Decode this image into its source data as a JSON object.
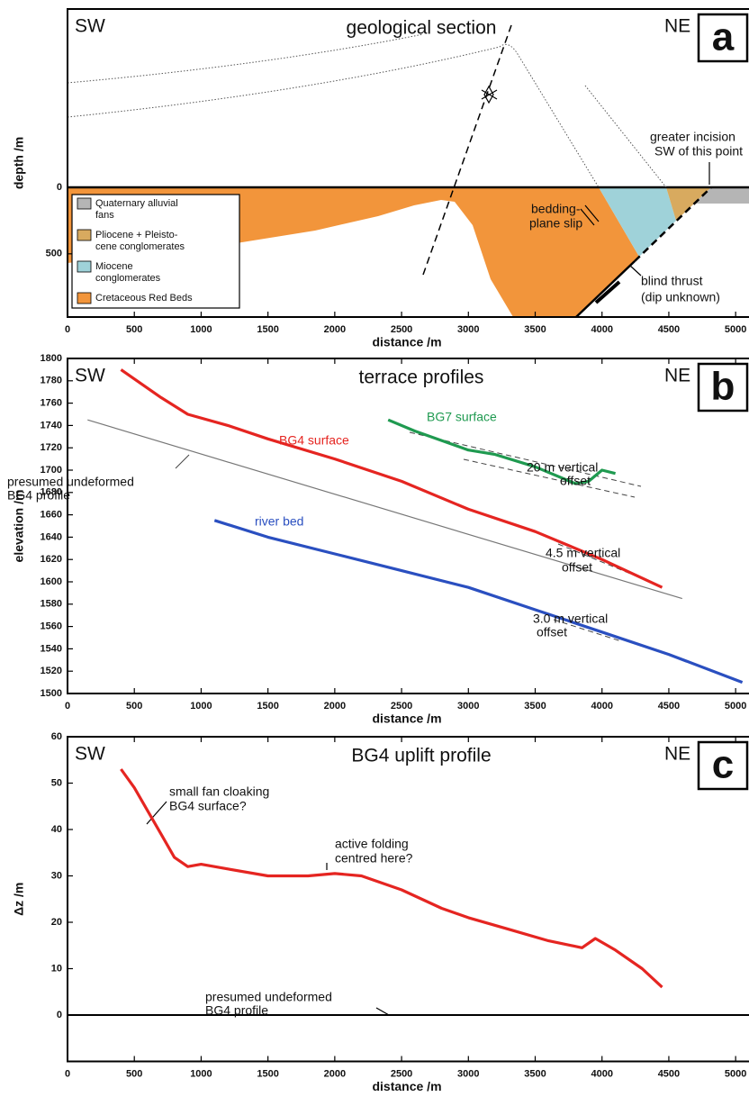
{
  "chart_data": [
    {
      "type": "section",
      "panel": "a",
      "title": "geological section",
      "left_label": "SW",
      "right_label": "NE",
      "xlabel": "distance /m",
      "ylabel": "depth /m",
      "xlim": [
        0,
        5100
      ],
      "xticks": [
        0,
        500,
        1000,
        1500,
        2000,
        2500,
        3000,
        3500,
        4000,
        4500,
        5000
      ],
      "ylim": [
        -1340,
        975
      ],
      "y_inverted": true,
      "yticks": [
        0,
        500
      ],
      "legend": [
        {
          "lines": [
            "Quaternary alluvial",
            "fans"
          ],
          "color": "#b5b5b5"
        },
        {
          "lines": [
            "Pliocene + Pleisto-",
            "cene conglomerates"
          ],
          "color": "#d8aa5f"
        },
        {
          "lines": [
            "Miocene",
            "conglomerates"
          ],
          "color": "#9fd2d9"
        },
        {
          "lines": [
            "Cretaceous Red Beds"
          ],
          "color": "#f2953b"
        }
      ],
      "annotations": [
        {
          "lines": [
            "greater incision",
            "SW of this point"
          ]
        },
        {
          "lines": [
            "bedding-",
            "plane slip"
          ]
        },
        {
          "lines": [
            "blind thrust",
            "(dip unknown)"
          ]
        }
      ]
    },
    {
      "type": "line",
      "panel": "b",
      "title": "terrace profiles",
      "left_label": "SW",
      "right_label": "NE",
      "xlabel": "distance /m",
      "ylabel": "elevation /m",
      "xlim": [
        0,
        5100
      ],
      "xticks": [
        0,
        500,
        1000,
        1500,
        2000,
        2500,
        3000,
        3500,
        4000,
        4500,
        5000
      ],
      "ylim": [
        1500,
        1800
      ],
      "yticks": [
        1500,
        1520,
        1540,
        1560,
        1580,
        1600,
        1620,
        1640,
        1660,
        1680,
        1700,
        1720,
        1740,
        1760,
        1780,
        1800
      ],
      "series": [
        {
          "name": "BG4 surface",
          "color": "#e52521",
          "x": [
            400,
            700,
            900,
            1200,
            1500,
            2000,
            2500,
            3000,
            3500,
            4000,
            4450
          ],
          "values": [
            1790,
            1765,
            1750,
            1740,
            1728,
            1710,
            1690,
            1665,
            1645,
            1620,
            1595
          ]
        },
        {
          "name": "BG7 surface",
          "color": "#1f9a50",
          "x": [
            2400,
            2600,
            3000,
            3200,
            3500,
            3800,
            3900,
            4000,
            4100
          ],
          "values": [
            1745,
            1735,
            1718,
            1714,
            1703,
            1688,
            1690,
            1700,
            1697
          ]
        },
        {
          "name": "river bed",
          "color": "#2a4fc0",
          "x": [
            1100,
            1500,
            2000,
            2500,
            3000,
            3500,
            4000,
            4500,
            5050
          ],
          "values": [
            1655,
            1640,
            1625,
            1610,
            1595,
            1575,
            1555,
            1535,
            1510
          ]
        },
        {
          "color": "#777777",
          "x": [
            150,
            4600
          ],
          "values": [
            1745,
            1585
          ]
        }
      ],
      "annotations": [
        {
          "lines": [
            "presumed undeformed",
            "BG4 profile"
          ]
        },
        {
          "lines": [
            "20 m vertical",
            "offset"
          ]
        },
        {
          "lines": [
            "4.5 m vertical",
            "offset"
          ]
        },
        {
          "lines": [
            "3.0 m vertical",
            "offset"
          ]
        }
      ]
    },
    {
      "type": "line",
      "panel": "c",
      "title": "BG4 uplift profile",
      "left_label": "SW",
      "right_label": "NE",
      "xlabel": "distance /m",
      "ylabel": "Δz /m",
      "xlim": [
        0,
        5100
      ],
      "xticks": [
        0,
        500,
        1000,
        1500,
        2000,
        2500,
        3000,
        3500,
        4000,
        4500,
        5000
      ],
      "ylim": [
        -10,
        60
      ],
      "yticks": [
        0,
        10,
        20,
        30,
        40,
        50,
        60
      ],
      "series": [
        {
          "color": "#e52521",
          "x": [
            400,
            500,
            600,
            700,
            800,
            900,
            1000,
            1200,
            1500,
            1800,
            2000,
            2200,
            2500,
            2800,
            3000,
            3300,
            3600,
            3850,
            3950,
            4100,
            4300,
            4450
          ],
          "values": [
            53,
            49,
            44,
            39,
            34,
            32,
            32.5,
            31.5,
            30,
            30,
            30.5,
            30,
            27,
            23,
            21,
            18.5,
            16,
            14.5,
            16.5,
            14,
            10,
            6
          ]
        },
        {
          "color": "#000000",
          "x": [
            0,
            5100
          ],
          "values": [
            0,
            0
          ]
        }
      ],
      "annotations": [
        {
          "lines": [
            "small fan cloaking",
            "BG4 surface?"
          ]
        },
        {
          "lines": [
            "active folding",
            "centred here?"
          ]
        },
        {
          "lines": [
            "presumed undeformed",
            "BG4 profile"
          ]
        }
      ]
    }
  ]
}
